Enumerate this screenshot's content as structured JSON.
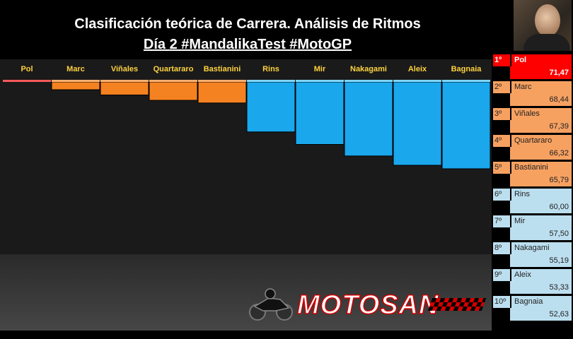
{
  "header": {
    "title": "Clasificación teórica de Carrera. Análisis de Ritmos",
    "subtitle": "Día 2 #MandalikaTest #MotoGP"
  },
  "colors": {
    "first": "#ff0000",
    "top5": "#f58220",
    "rest": "#1aa7ec",
    "rank_first": "#ff0000",
    "rank_top5": "#f7a161",
    "rank_rest": "#bcdff0"
  },
  "logo": {
    "text": "MOTOSAN"
  },
  "chart_data": {
    "type": "bar",
    "title": "Clasificación teórica de Carrera. Análisis de Ritmos",
    "subtitle": "Día 2 #MandalikaTest #MotoGP",
    "categories": [
      "Pol",
      "Marc",
      "Viñales",
      "Quartararo",
      "Bastianini",
      "Rins",
      "Mir",
      "Nakagami",
      "Aleix",
      "Bagnaia"
    ],
    "values": [
      71.47,
      68.44,
      67.39,
      66.32,
      65.79,
      60.0,
      57.5,
      55.19,
      53.33,
      52.63
    ],
    "xlabel": "",
    "ylabel": "",
    "ylim": [
      0,
      100
    ],
    "grid": false,
    "legend": "none"
  },
  "ranking": [
    {
      "pos": "1º",
      "name": "Pol",
      "value": "71,47"
    },
    {
      "pos": "2º",
      "name": "Marc",
      "value": "68,44"
    },
    {
      "pos": "3º",
      "name": "Viñales",
      "value": "67,39"
    },
    {
      "pos": "4º",
      "name": "Quartararo",
      "value": "66,32"
    },
    {
      "pos": "5º",
      "name": "Bastianini",
      "value": "65,79"
    },
    {
      "pos": "6º",
      "name": "Rins",
      "value": "60,00"
    },
    {
      "pos": "7º",
      "name": "Mir",
      "value": "57,50"
    },
    {
      "pos": "8º",
      "name": "Nakagami",
      "value": "55,19"
    },
    {
      "pos": "9º",
      "name": "Aleix",
      "value": "53,33"
    },
    {
      "pos": "10º",
      "name": "Bagnaia",
      "value": "52,63"
    }
  ]
}
